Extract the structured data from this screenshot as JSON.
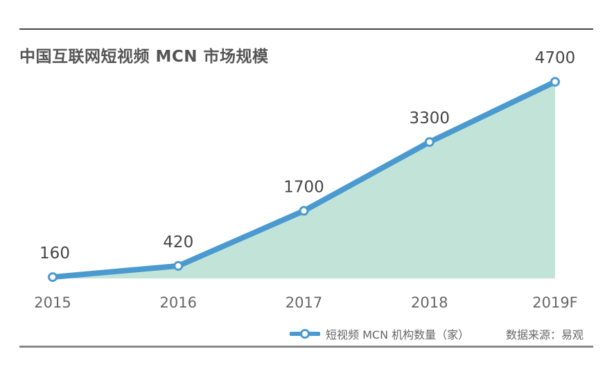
{
  "title": "中国互联网短视频 MCN 市场规模",
  "legend": {
    "label": "短视频 MCN 机构数量（家）"
  },
  "source": "数据来源：易观",
  "colors": {
    "line": "#4a9ad0",
    "area": "#c2e4d8",
    "text": "#555555"
  },
  "chart_data": {
    "type": "area",
    "title": "中国互联网短视频 MCN 市场规模",
    "categories": [
      "2015",
      "2016",
      "2017",
      "2018",
      "2019F"
    ],
    "series": [
      {
        "name": "短视频 MCN 机构数量（家）",
        "values": [
          160,
          420,
          1700,
          3300,
          4700
        ]
      }
    ],
    "data_labels": [
      "160",
      "420",
      "1700",
      "3300",
      "4700"
    ],
    "grid": false,
    "legend_position": "bottom"
  }
}
